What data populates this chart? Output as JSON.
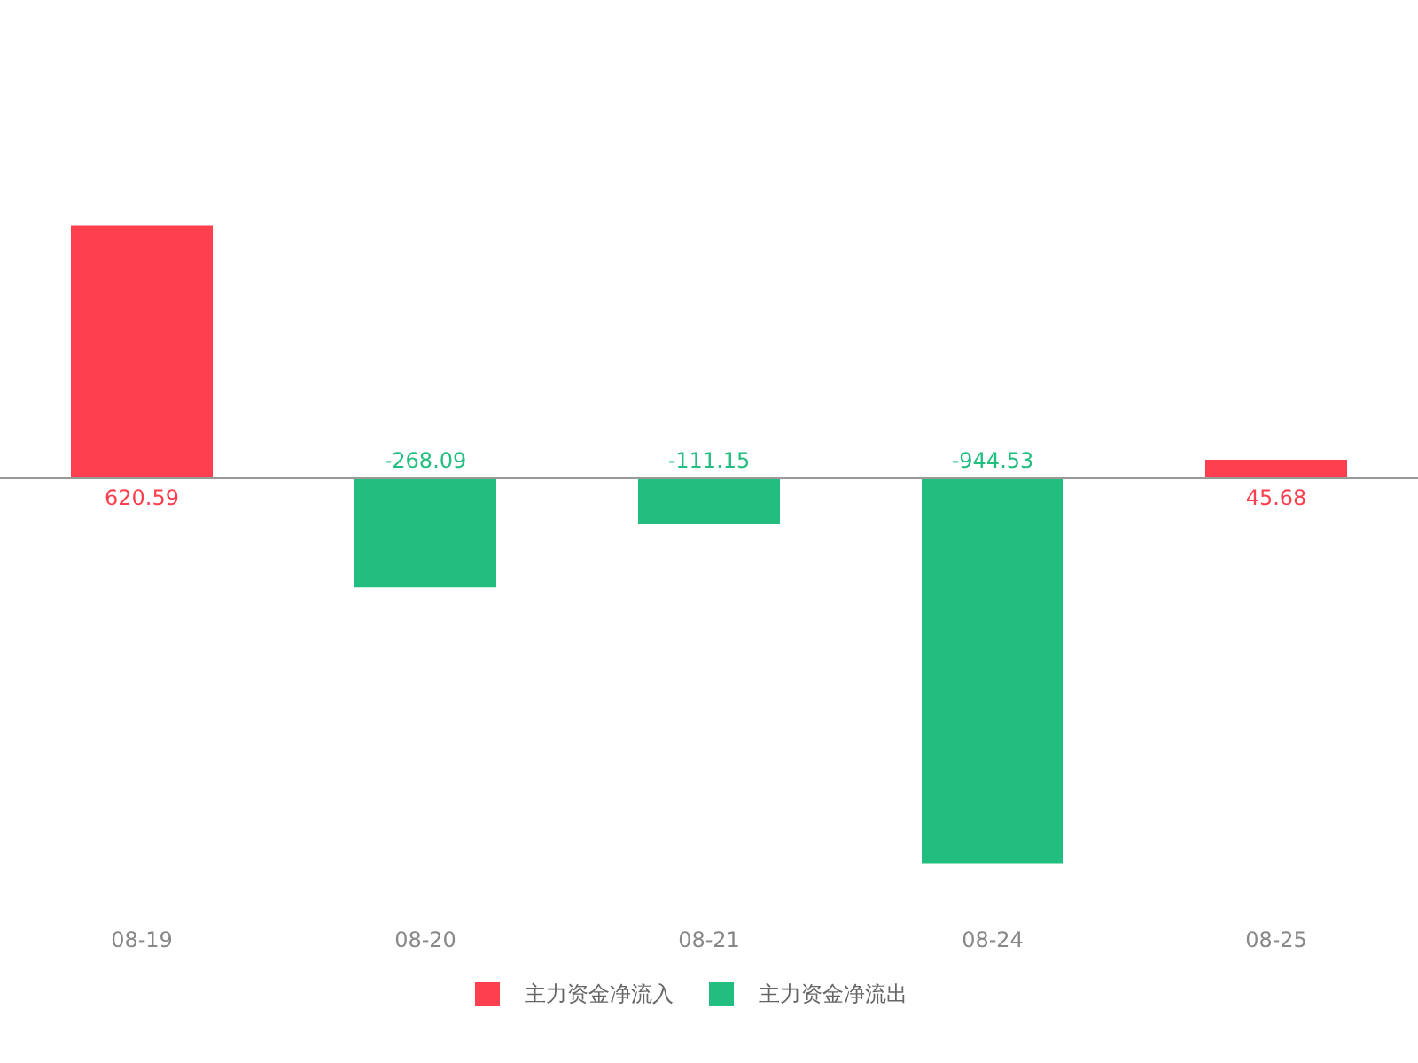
{
  "chart_data": {
    "type": "bar",
    "categories": [
      "08-19",
      "08-20",
      "08-21",
      "08-24",
      "08-25"
    ],
    "series": [
      {
        "name": "主力资金净流入",
        "color": "#fd3f4f",
        "values": [
          620.59,
          null,
          null,
          null,
          45.68
        ]
      },
      {
        "name": "主力资金净流出",
        "color": "#22be7f",
        "values": [
          null,
          -268.09,
          -111.15,
          -944.53,
          null
        ]
      }
    ],
    "data_labels": true,
    "legend": "bottom",
    "grid": false,
    "tick_labels": "x"
  }
}
